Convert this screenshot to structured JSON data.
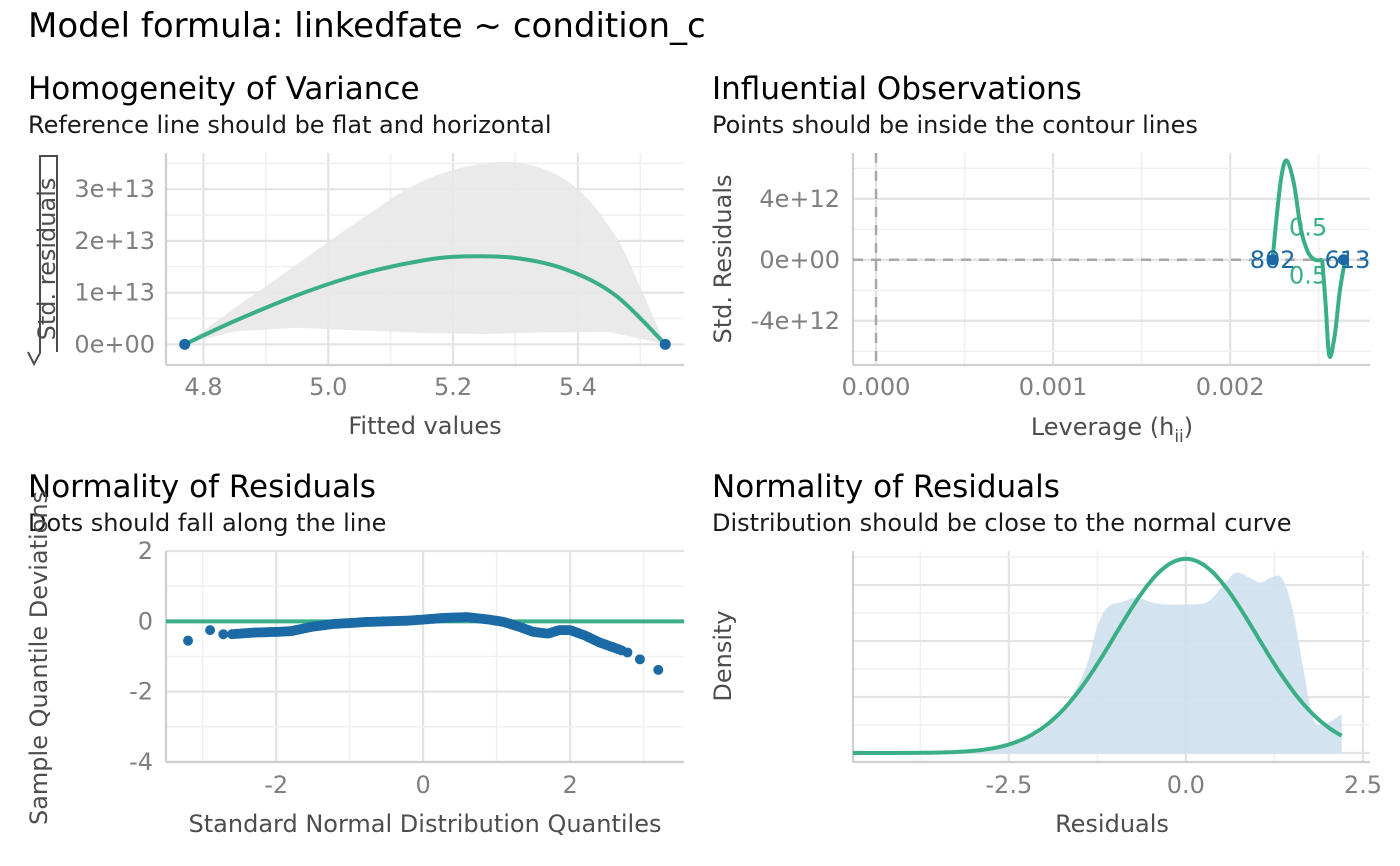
{
  "title": "Model formula: linkedfate ~ condition_c",
  "colors": {
    "fit_line": "#3aaf85",
    "points": "#1b6aa5",
    "band": "#e8e8e8",
    "density_fill": "#cfe0ee",
    "ref_dash": "#a8a8a8"
  },
  "panels": [
    {
      "id": "homogeneity",
      "title": "Homogeneity of Variance",
      "subtitle": "Reference line should be flat and horizontal",
      "xlabel": "Fitted values",
      "ylabel": "Std. residuals",
      "ylabel_sqrt": "√|",
      "ylabel_suffix": "|"
    },
    {
      "id": "influential",
      "title": "Influential Observations",
      "subtitle": "Points should be inside the contour lines",
      "xlabel": "Leverage (h",
      "xlabel_sub": "ii",
      "xlabel_suffix": ")",
      "ylabel": "Std. Residuals",
      "contour_label": "0.5",
      "point_labels_left": "802",
      "point_labels_right": "613"
    },
    {
      "id": "qq",
      "title": "Normality of Residuals",
      "subtitle": "Dots should fall along the line",
      "xlabel": "Standard Normal Distribution Quantiles",
      "ylabel": "Sample Quantile Deviations"
    },
    {
      "id": "density",
      "title": "Normality of Residuals",
      "subtitle": "Distribution should be close to the normal curve",
      "xlabel": "Residuals",
      "ylabel": "Density"
    }
  ],
  "chart_data": [
    {
      "type": "scatter",
      "title": "Homogeneity of Variance",
      "subtitle": "Reference line should be flat and horizontal",
      "xlabel": "Fitted values",
      "ylabel": "√|Std. residuals|",
      "xlim": [
        4.74,
        5.57
      ],
      "ylim": [
        -4000000000000.0,
        37000000000000.0
      ],
      "xticks": [
        4.8,
        5.0,
        5.2,
        5.4
      ],
      "xtick_labels": [
        "4.8",
        "5.0",
        "5.2",
        "5.4"
      ],
      "yticks": [
        0,
        10000000000000.0,
        20000000000000.0,
        30000000000000.0
      ],
      "ytick_labels": [
        "0e+00",
        "1e+13",
        "2e+13",
        "3e+13"
      ],
      "points": [
        [
          4.77,
          0
        ],
        [
          5.54,
          0
        ]
      ],
      "smooth_line": [
        [
          4.77,
          0
        ],
        [
          4.85,
          4500000000000.0
        ],
        [
          4.95,
          9500000000000.0
        ],
        [
          5.05,
          13500000000000.0
        ],
        [
          5.15,
          16200000000000.0
        ],
        [
          5.22,
          17000000000000.0
        ],
        [
          5.3,
          16700000000000.0
        ],
        [
          5.38,
          14500000000000.0
        ],
        [
          5.46,
          9500000000000.0
        ],
        [
          5.54,
          0
        ]
      ],
      "band_upper": [
        [
          4.77,
          0
        ],
        [
          4.85,
          7000000000000.0
        ],
        [
          4.95,
          15500000000000.0
        ],
        [
          5.05,
          24000000000000.0
        ],
        [
          5.15,
          31500000000000.0
        ],
        [
          5.25,
          35000000000000.0
        ],
        [
          5.33,
          34500000000000.0
        ],
        [
          5.4,
          30000000000000.0
        ],
        [
          5.46,
          21000000000000.0
        ],
        [
          5.5,
          11000000000000.0
        ],
        [
          5.54,
          0
        ]
      ],
      "band_lower": [
        [
          4.77,
          0
        ],
        [
          4.85,
          2500000000000.0
        ],
        [
          4.95,
          3200000000000.0
        ],
        [
          5.05,
          2700000000000.0
        ],
        [
          5.15,
          2200000000000.0
        ],
        [
          5.25,
          2000000000000.0
        ],
        [
          5.35,
          2300000000000.0
        ],
        [
          5.45,
          2400000000000.0
        ],
        [
          5.54,
          0
        ]
      ],
      "grid": true
    },
    {
      "type": "scatter",
      "title": "Influential Observations",
      "subtitle": "Points should be inside the contour lines",
      "xlabel": "Leverage (hii)",
      "ylabel": "Std. Residuals",
      "xlim": [
        -0.00013,
        0.00279
      ],
      "ylim": [
        -6900000000000.0,
        7000000000000.0
      ],
      "xticks": [
        0,
        0.001,
        0.002
      ],
      "xtick_labels": [
        "0.000",
        "0.001",
        "0.002"
      ],
      "yticks": [
        -4000000000000.0,
        0,
        4000000000000.0
      ],
      "ytick_labels": [
        "-4e+12",
        "0e+00",
        "4e+12"
      ],
      "points": [
        [
          0.00224,
          0
        ],
        [
          0.00264,
          0
        ]
      ],
      "point_labels": [
        "802",
        "613"
      ],
      "contour_level": "0.5",
      "contour_upper": [
        [
          0.00224,
          0
        ],
        [
          0.00226,
          2500000000000.0
        ],
        [
          0.00229,
          5500000000000.0
        ],
        [
          0.00232,
          6500000000000.0
        ],
        [
          0.00236,
          5000000000000.0
        ],
        [
          0.0024,
          2000000000000.0
        ],
        [
          0.00244,
          500000000000.0
        ],
        [
          0.00248,
          0
        ],
        [
          0.00252,
          0
        ]
      ],
      "contour_lower": [
        [
          0.00252,
          0
        ],
        [
          0.00254,
          -3000000000000.0
        ],
        [
          0.00256,
          -6300000000000.0
        ],
        [
          0.00259,
          -5000000000000.0
        ],
        [
          0.00262,
          -2000000000000.0
        ],
        [
          0.00265,
          0
        ]
      ],
      "ref_hline": 0,
      "ref_vline": 0,
      "grid": true
    },
    {
      "type": "scatter",
      "title": "Normality of Residuals",
      "subtitle": "Dots should fall along the line",
      "xlabel": "Standard Normal Distribution Quantiles",
      "ylabel": "Sample Quantile Deviations",
      "xlim": [
        -3.5,
        3.55
      ],
      "ylim": [
        -4,
        2
      ],
      "xticks": [
        -2,
        0,
        2
      ],
      "xtick_labels": [
        "-2",
        "0",
        "2"
      ],
      "yticks": [
        -4,
        -2,
        0,
        2
      ],
      "ytick_labels": [
        "-4",
        "-2",
        "0",
        "2"
      ],
      "ref_hline": 0,
      "qq_curve": [
        [
          -3.2,
          -0.55
        ],
        [
          -2.9,
          -0.25
        ],
        [
          -2.7,
          -0.38
        ],
        [
          -2.5,
          -0.35
        ],
        [
          -2.3,
          -0.32
        ],
        [
          -2.0,
          -0.3
        ],
        [
          -1.8,
          -0.28
        ],
        [
          -1.5,
          -0.15
        ],
        [
          -1.2,
          -0.07
        ],
        [
          -1.0,
          -0.05
        ],
        [
          -0.8,
          -0.02
        ],
        [
          -0.5,
          0.0
        ],
        [
          -0.2,
          0.02
        ],
        [
          0.0,
          0.05
        ],
        [
          0.3,
          0.1
        ],
        [
          0.6,
          0.12
        ],
        [
          0.9,
          0.05
        ],
        [
          1.1,
          -0.02
        ],
        [
          1.3,
          -0.15
        ],
        [
          1.5,
          -0.3
        ],
        [
          1.7,
          -0.35
        ],
        [
          1.85,
          -0.25
        ],
        [
          2.0,
          -0.25
        ],
        [
          2.2,
          -0.4
        ],
        [
          2.4,
          -0.6
        ],
        [
          2.6,
          -0.75
        ],
        [
          2.8,
          -0.9
        ],
        [
          2.95,
          -1.08
        ],
        [
          3.2,
          -1.38
        ]
      ],
      "grid": true
    },
    {
      "type": "area",
      "title": "Normality of Residuals",
      "subtitle": "Distribution should be close to the normal curve",
      "xlabel": "Residuals",
      "ylabel": "Density",
      "xlim": [
        -4.7,
        2.6
      ],
      "ylim": [
        0,
        0.415
      ],
      "xticks": [
        -2.5,
        0.0,
        2.5
      ],
      "xtick_labels": [
        "-2.5",
        "0.0",
        "2.5"
      ],
      "density": [
        [
          -3.3,
          0
        ],
        [
          -3.0,
          0.005
        ],
        [
          -2.5,
          0.02
        ],
        [
          -2.2,
          0.03
        ],
        [
          -1.9,
          0.06
        ],
        [
          -1.6,
          0.12
        ],
        [
          -1.4,
          0.18
        ],
        [
          -1.25,
          0.26
        ],
        [
          -1.1,
          0.3
        ],
        [
          -0.9,
          0.31
        ],
        [
          -0.7,
          0.32
        ],
        [
          -0.5,
          0.31
        ],
        [
          -0.3,
          0.305
        ],
        [
          0.0,
          0.305
        ],
        [
          0.3,
          0.31
        ],
        [
          0.5,
          0.34
        ],
        [
          0.7,
          0.37
        ],
        [
          0.9,
          0.36
        ],
        [
          1.05,
          0.35
        ],
        [
          1.2,
          0.36
        ],
        [
          1.35,
          0.36
        ],
        [
          1.5,
          0.3
        ],
        [
          1.65,
          0.18
        ],
        [
          1.8,
          0.07
        ],
        [
          1.95,
          0.06
        ],
        [
          2.1,
          0.07
        ],
        [
          2.2,
          0.08
        ],
        [
          2.2,
          0
        ]
      ],
      "normal_curve": {
        "mean": 0,
        "sd": 1.0,
        "from": -4.7,
        "to": 2.2
      },
      "grid": true
    }
  ]
}
